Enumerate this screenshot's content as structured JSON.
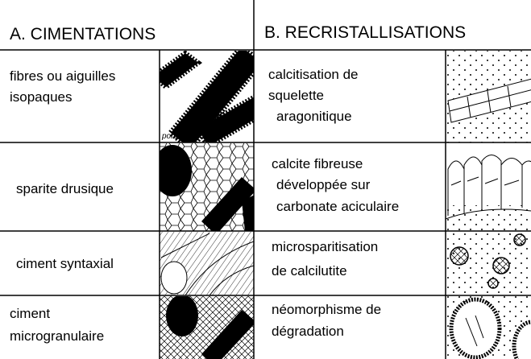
{
  "header": {
    "cimentations": "A.  CIMENTATIONS",
    "recristallisations": "B. RECRISTALLISATIONS"
  },
  "cimentations": {
    "rows": [
      {
        "lines": [
          "fibres ou aiguilles",
          "isopaques"
        ],
        "image_label": "pore"
      },
      {
        "lines": [
          "sparite drusique"
        ]
      },
      {
        "lines": [
          "ciment syntaxial"
        ]
      },
      {
        "lines": [
          "ciment",
          "microgranulaire"
        ]
      }
    ]
  },
  "recristallisations": {
    "rows": [
      {
        "lines": [
          "calcitisation de",
          "squelette",
          "aragonitique"
        ]
      },
      {
        "lines": [
          "calcite fibreuse",
          "développée sur",
          "carbonate aciculaire"
        ]
      },
      {
        "lines": [
          "microsparitisation",
          "de calcilutite"
        ]
      },
      {
        "lines": [
          "néomorphisme de",
          "dégradation"
        ]
      }
    ]
  }
}
